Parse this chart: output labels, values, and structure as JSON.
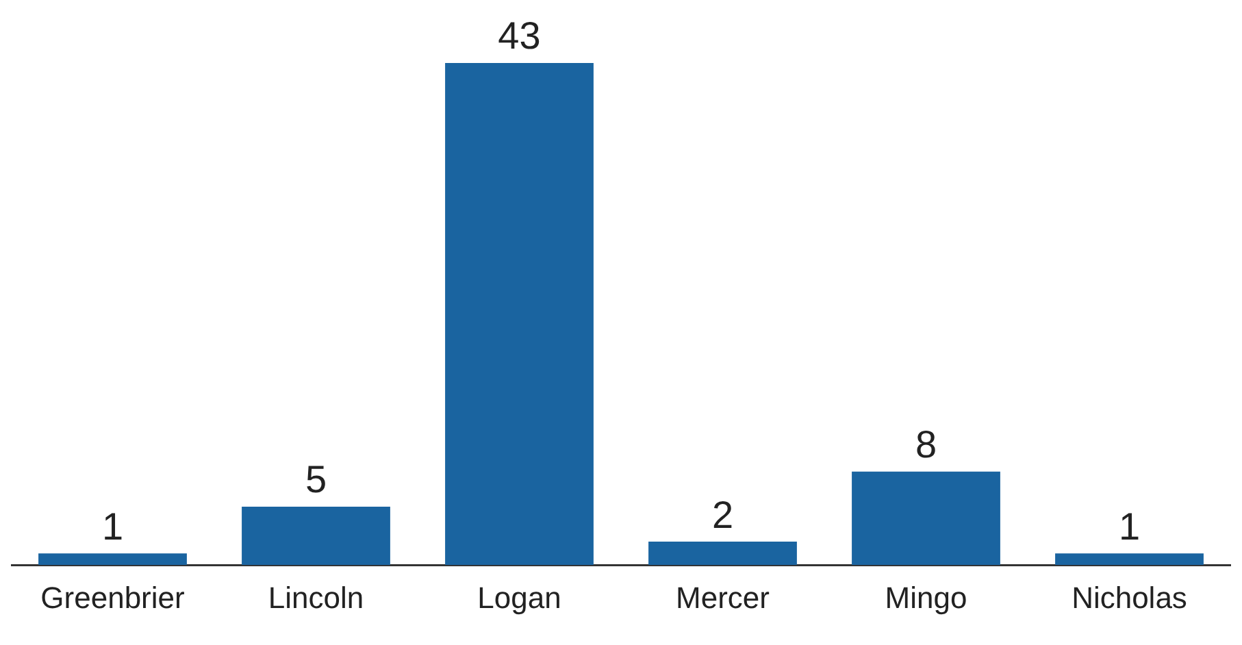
{
  "chart_data": {
    "type": "bar",
    "categories": [
      "Greenbrier",
      "Lincoln",
      "Logan",
      "Mercer",
      "Mingo",
      "Nicholas"
    ],
    "values": [
      1,
      5,
      43,
      2,
      8,
      1
    ],
    "color": "#1a64a0",
    "data_labels": true,
    "grid": false,
    "legend": false,
    "tick_labels": "x"
  }
}
